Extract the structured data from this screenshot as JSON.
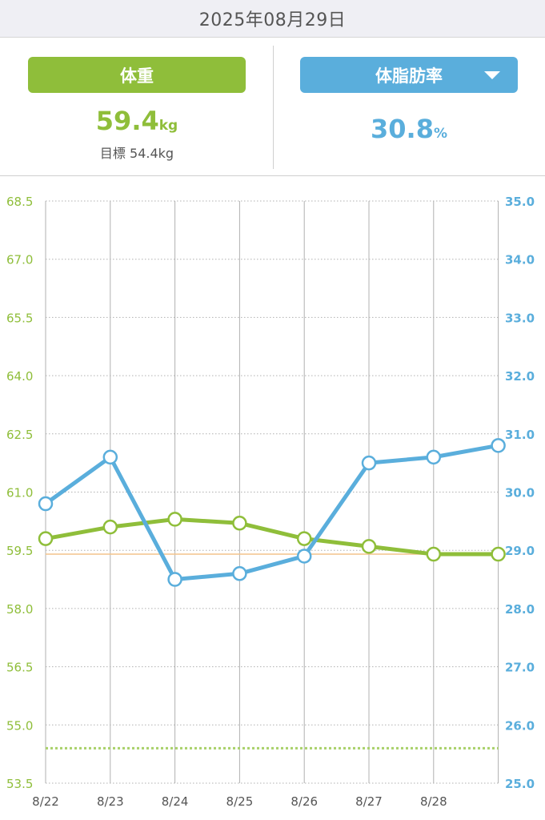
{
  "header": {
    "date": "2025年08月29日"
  },
  "weight": {
    "label": "体重",
    "value": "59.4",
    "unit": "kg",
    "goal_label": "目標",
    "goal_value": "54.4kg"
  },
  "fat": {
    "label": "体脂肪率",
    "value": "30.8",
    "unit": "%"
  },
  "colors": {
    "weight": "#8fbe3a",
    "fat": "#5aaedc",
    "grid": "#b0b0b0",
    "goal_line": "#a9d16a",
    "current_line": "#f3c48b"
  },
  "chart_data": {
    "type": "line",
    "x": [
      "8/22",
      "8/23",
      "8/24",
      "8/25",
      "8/26",
      "8/27",
      "8/28",
      "8/29"
    ],
    "x_tick_labels": [
      "8/22",
      "8/23",
      "8/24",
      "8/25",
      "8/26",
      "8/27",
      "8/28",
      ""
    ],
    "series": [
      {
        "name": "体重",
        "axis": "left",
        "values": [
          59.8,
          60.1,
          60.3,
          60.2,
          59.8,
          59.6,
          59.4,
          59.4
        ]
      },
      {
        "name": "体脂肪率",
        "axis": "right",
        "values": [
          29.8,
          30.6,
          28.5,
          28.6,
          28.9,
          30.5,
          30.6,
          30.8
        ]
      }
    ],
    "y_left": {
      "range": [
        53.5,
        68.5
      ],
      "ticks": [
        "53.5",
        "55.0",
        "56.5",
        "58.0",
        "59.5",
        "61.0",
        "62.5",
        "64.0",
        "65.5",
        "67.0",
        "68.5"
      ]
    },
    "y_right": {
      "range": [
        25.0,
        35.0
      ],
      "ticks": [
        "25.0",
        "26.0",
        "27.0",
        "28.0",
        "29.0",
        "30.0",
        "31.0",
        "32.0",
        "33.0",
        "34.0",
        "35.0"
      ]
    },
    "reference_lines": [
      {
        "axis": "left",
        "value": 54.4,
        "style": "dotted"
      },
      {
        "axis": "left",
        "value": 59.4,
        "style": "solid"
      }
    ],
    "grid": true
  }
}
